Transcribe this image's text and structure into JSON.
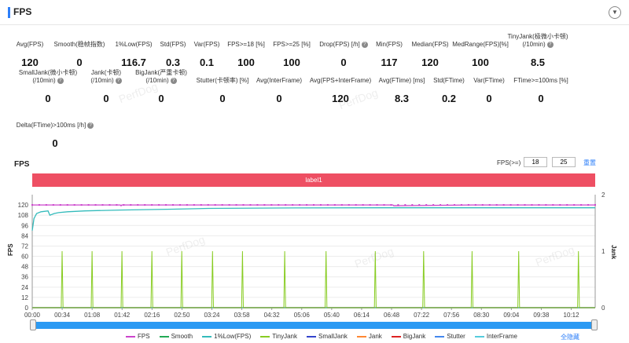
{
  "header": {
    "title": "FPS"
  },
  "metrics_row1": [
    {
      "label": "Avg(FPS)",
      "value": "120",
      "help": false
    },
    {
      "label": "Smooth(稳帧指数)",
      "value": "0",
      "help": false
    },
    {
      "label": "1%Low(FPS)",
      "value": "116.7",
      "help": false
    },
    {
      "label": "Std(FPS)",
      "value": "0.3",
      "help": false
    },
    {
      "label": "Var(FPS)",
      "value": "0.1",
      "help": false
    },
    {
      "label": "FPS>=18 [%]",
      "value": "100",
      "help": false
    },
    {
      "label": "FPS>=25 [%]",
      "value": "100",
      "help": false
    },
    {
      "label": "Drop(FPS) [/h]",
      "value": "0",
      "help": true
    },
    {
      "label": "Min(FPS)",
      "value": "117",
      "help": false
    },
    {
      "label": "Median(FPS)",
      "value": "120",
      "help": false
    },
    {
      "label": "MedRange(FPS)[%]",
      "value": "100",
      "help": false
    },
    {
      "label": "TinyJank(极微小卡顿)",
      "label2": "(/10min)",
      "value": "8.5",
      "help": true
    }
  ],
  "metrics_row2": [
    {
      "label": "SmallJank(微小卡顿)",
      "label2": "(/10min)",
      "value": "0",
      "help": true
    },
    {
      "label": "Jank(卡顿)",
      "label2": "(/10min)",
      "value": "0",
      "help": true
    },
    {
      "label": "BigJank(严重卡顿)",
      "label2": "(/10min)",
      "value": "0",
      "help": true
    },
    {
      "label": "Stutter(卡顿率) [%]",
      "value": "0",
      "help": false
    },
    {
      "label": "Avg(InterFrame)",
      "value": "0",
      "help": false
    },
    {
      "label": "Avg(FPS+InterFrame)",
      "value": "120",
      "help": false
    },
    {
      "label": "Avg(FTime) [ms]",
      "value": "8.3",
      "help": false
    },
    {
      "label": "Std(FTime)",
      "value": "0.2",
      "help": false
    },
    {
      "label": "Var(FTime)",
      "value": "0",
      "help": false
    },
    {
      "label": "FTime>=100ms [%]",
      "value": "0",
      "help": false
    }
  ],
  "metrics_row3": [
    {
      "label": "Delta(FTime)>100ms [/h]",
      "value": "0",
      "help": true
    }
  ],
  "chart_section": {
    "title": "FPS",
    "fps_label": "FPS(>=)",
    "fps_threshold_1": "18",
    "fps_threshold_2": "25",
    "reset_label": "重置",
    "label_bar_text": "label1"
  },
  "watermark": "PerfDog",
  "chart_data": {
    "type": "line",
    "ylabel": "FPS",
    "y2label": "Jank",
    "y_ticks": [
      "0",
      "12",
      "24",
      "36",
      "48",
      "60",
      "72",
      "84",
      "96",
      "108",
      "120"
    ],
    "y2_ticks": [
      "0",
      "1",
      "2"
    ],
    "ylim": [
      0,
      132
    ],
    "y2lim": [
      0,
      2
    ],
    "x_ticks": [
      "00:00",
      "00:34",
      "01:08",
      "01:42",
      "02:16",
      "02:50",
      "03:24",
      "03:58",
      "04:32",
      "05:06",
      "05:40",
      "06:14",
      "06:48",
      "07:22",
      "07:56",
      "08:30",
      "09:04",
      "09:38",
      "10:12"
    ],
    "duration_seconds": 640,
    "series": [
      {
        "name": "FPS",
        "color": "#cc44cc",
        "axis": "left",
        "style": "line-markers",
        "x": [
          0,
          100,
          101,
          102,
          200,
          300,
          400,
          410,
          411,
          500,
          600,
          640
        ],
        "y": [
          120,
          120,
          119,
          120,
          120,
          120,
          120,
          120,
          119,
          120,
          120,
          120
        ]
      },
      {
        "name": "Smooth",
        "color": "#22aa55",
        "axis": "left",
        "style": "line",
        "x": [
          0,
          640
        ],
        "y": [
          0,
          0
        ]
      },
      {
        "name": "1%Low(FPS)",
        "color": "#33bbbb",
        "axis": "left",
        "style": "line",
        "x": [
          0,
          2,
          5,
          10,
          18,
          20,
          25,
          30,
          40,
          60,
          100,
          160,
          200,
          300,
          400,
          500,
          640
        ],
        "y": [
          90,
          104,
          110,
          112,
          113,
          108,
          110,
          111,
          112,
          113,
          114,
          115,
          116,
          116.5,
          116.7,
          116.7,
          116.7
        ]
      },
      {
        "name": "TinyJank",
        "color": "#88cc22",
        "axis": "right",
        "style": "spikes",
        "x": [
          0,
          33,
          34,
          35,
          67,
          68,
          69,
          101,
          102,
          103,
          135,
          136,
          137,
          169,
          170,
          171,
          204,
          205,
          206,
          238,
          239,
          240,
          286,
          287,
          288,
          333,
          334,
          335,
          389,
          390,
          391,
          444,
          445,
          446,
          499,
          500,
          501,
          552,
          553,
          554,
          620,
          621,
          622,
          640
        ],
        "y": [
          0,
          0,
          1,
          0,
          0,
          1,
          0,
          0,
          1,
          0,
          0,
          1,
          0,
          0,
          1,
          0,
          0,
          1,
          0,
          0,
          1,
          0,
          0,
          1,
          0,
          0,
          1,
          0,
          0,
          1,
          0,
          0,
          1,
          0,
          0,
          1,
          0,
          0,
          1,
          0,
          0,
          1,
          0,
          0
        ]
      },
      {
        "name": "SmallJank",
        "color": "#3344cc",
        "axis": "right",
        "style": "line",
        "x": [
          0,
          640
        ],
        "y": [
          0,
          0
        ]
      },
      {
        "name": "Jank",
        "color": "#ff8833",
        "axis": "right",
        "style": "line",
        "x": [
          0,
          640
        ],
        "y": [
          0,
          0
        ]
      },
      {
        "name": "BigJank",
        "color": "#dd2222",
        "axis": "right",
        "style": "line",
        "x": [
          0,
          640
        ],
        "y": [
          0,
          0
        ]
      },
      {
        "name": "Stutter",
        "color": "#4488ee",
        "axis": "right",
        "style": "line",
        "x": [
          0,
          640
        ],
        "y": [
          0,
          0
        ]
      },
      {
        "name": "InterFrame",
        "color": "#55ccdd",
        "axis": "left",
        "style": "line",
        "x": [
          0,
          640
        ],
        "y": [
          0,
          0
        ]
      }
    ]
  },
  "legend": {
    "hide_all_label": "全隐藏"
  }
}
